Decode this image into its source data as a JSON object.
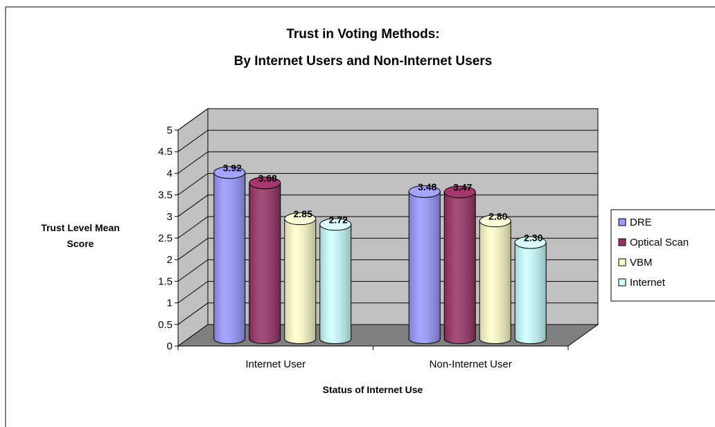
{
  "chart_data": {
    "type": "bar",
    "title_lines": [
      "Trust in Voting Methods:",
      "By Internet Users and Non-Internet Users"
    ],
    "xlabel": "Status of Internet Use",
    "ylabel_lines": [
      "Trust Level Mean",
      "Score"
    ],
    "categories": [
      "Internet User",
      "Non-Internet User"
    ],
    "series": [
      {
        "name": "DRE",
        "values": [
          3.92,
          3.48
        ],
        "color": "#9999ff"
      },
      {
        "name": "Optical Scan",
        "values": [
          3.68,
          3.47
        ],
        "color": "#993366"
      },
      {
        "name": "VBM",
        "values": [
          2.85,
          2.8
        ],
        "color": "#ffffcc"
      },
      {
        "name": "Internet",
        "values": [
          2.72,
          2.3
        ],
        "color": "#ccffff"
      }
    ],
    "data_labels": [
      [
        "3.92",
        "3.48"
      ],
      [
        "3.68",
        "3.47"
      ],
      [
        "2.85",
        "2.80"
      ],
      [
        "2.72",
        "2.30"
      ]
    ],
    "yticks": [
      "0",
      "0.5",
      "1",
      "1.5",
      "2",
      "2.5",
      "3",
      "3.5",
      "4",
      "4.5",
      "5"
    ],
    "ylim": [
      0,
      5
    ],
    "grid": true,
    "legend_position": "right",
    "wall_color": "#c0c0c0",
    "floor_color": "#808080"
  }
}
